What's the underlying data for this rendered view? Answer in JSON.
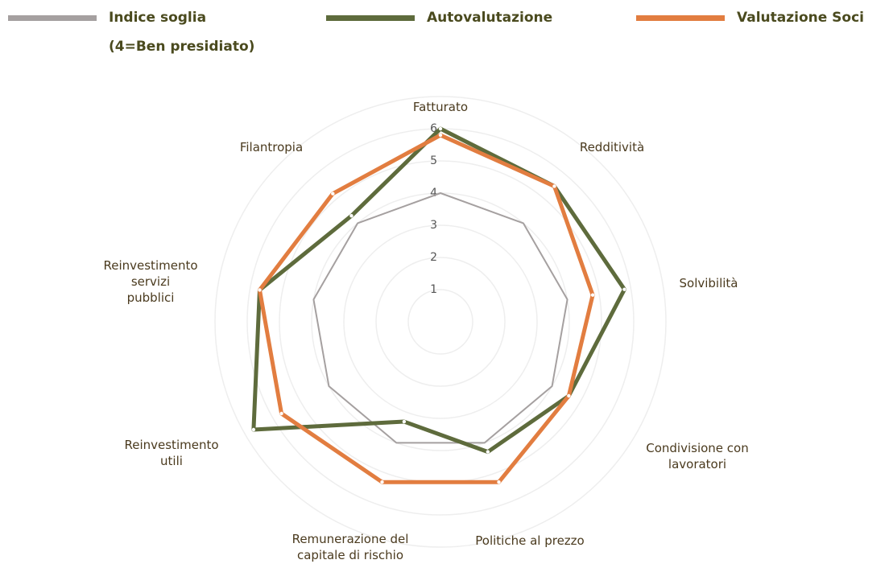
{
  "chart_data": {
    "type": "radar",
    "categories": [
      "Fatturato",
      "Redditività",
      "Solvibilità",
      "Condivisione con\nlavoratori",
      "Politiche al prezzo",
      "Remunerazione del\ncapitale di rischio",
      "Reinvestimento\nutili",
      "Reinvestimento\nservizi\npubblici",
      "Filantropia"
    ],
    "series": [
      {
        "name": "Indice soglia\n(4=Ben presidiato)",
        "color": "#a5a0a0",
        "values": [
          4,
          4,
          4,
          4,
          4,
          4,
          4,
          4,
          4
        ]
      },
      {
        "name": "Autovalutazione",
        "color": "#5e6b3c",
        "values": [
          6,
          5.5,
          5.8,
          4.6,
          4.3,
          3.3,
          6.7,
          5.7,
          4.3
        ]
      },
      {
        "name": "Valutazione Soci",
        "color": "#e27d40",
        "values": [
          5.8,
          5.5,
          4.8,
          4.6,
          5.3,
          5.3,
          5.7,
          5.7,
          5.2
        ]
      }
    ],
    "rlim": [
      0,
      7
    ],
    "rticks": [
      1,
      2,
      3,
      4,
      5,
      6
    ],
    "grid": true
  }
}
